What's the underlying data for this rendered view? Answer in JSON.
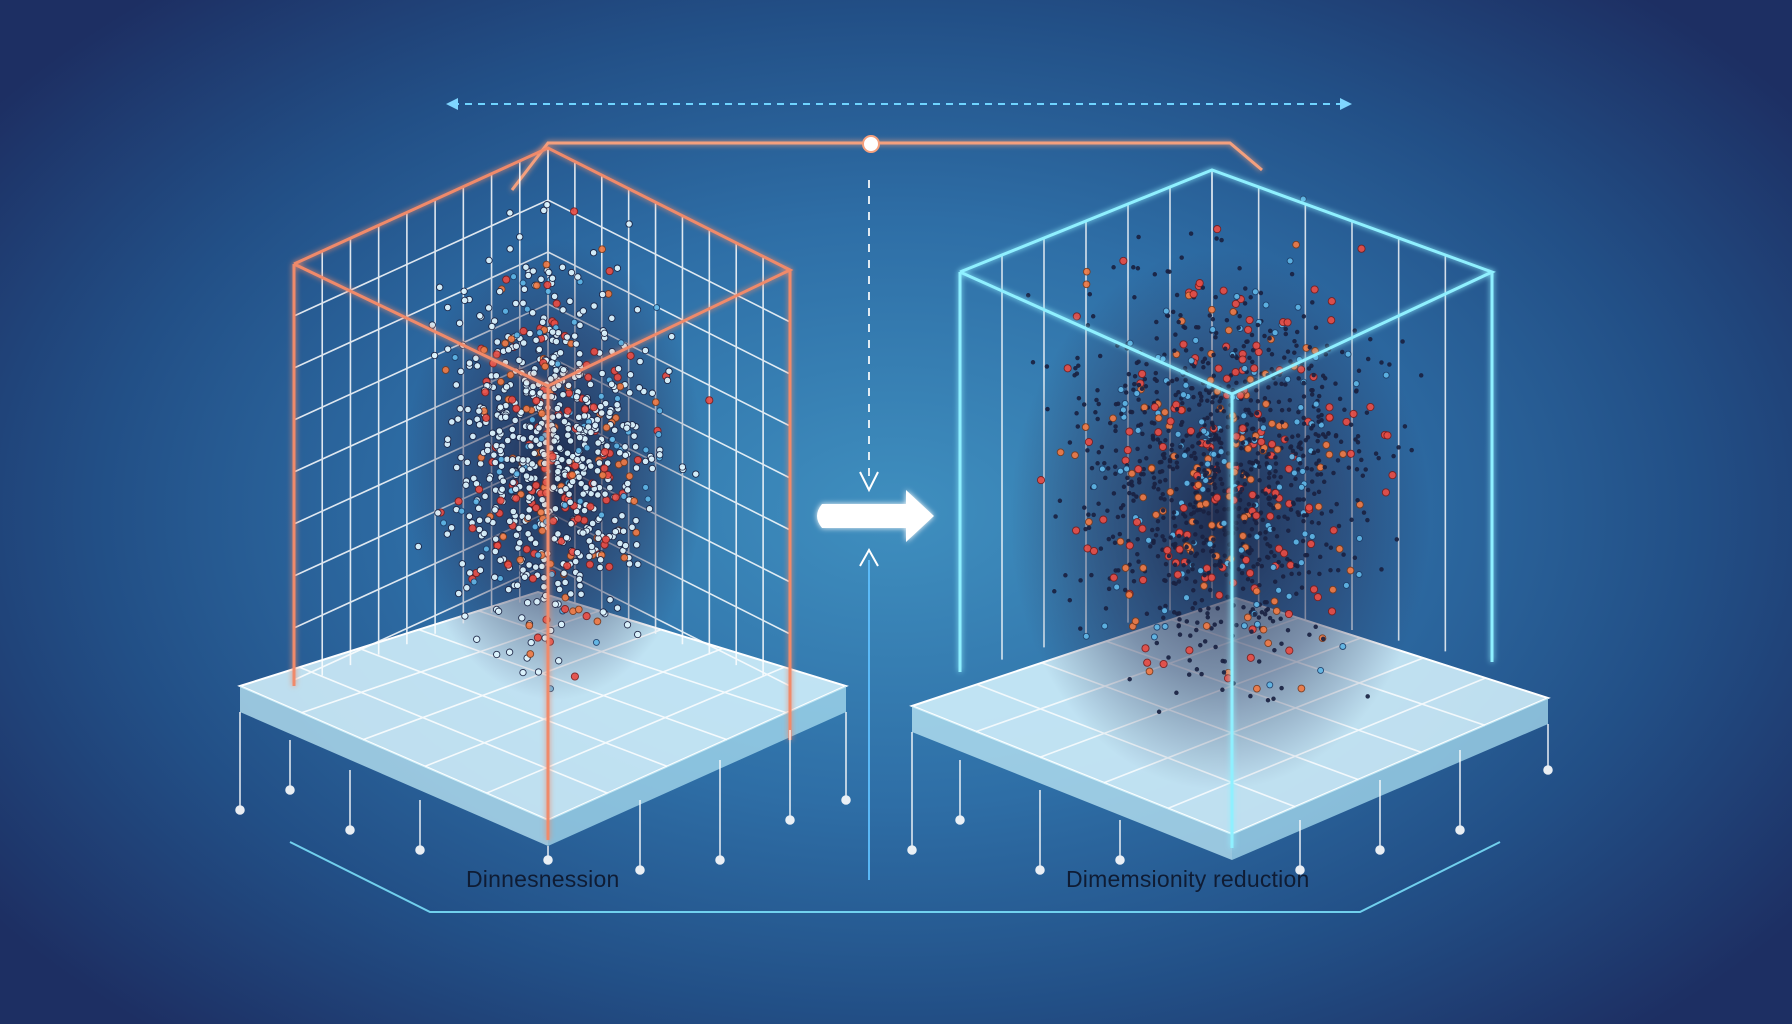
{
  "diagram": {
    "left_panel": {
      "label": "Dinnesnession"
    },
    "right_panel": {
      "label": "Dimemsionity reduction"
    },
    "colors": {
      "background_center": "#3f8fbf",
      "background_edge": "#1d2f63",
      "grid_line": "#ffffff",
      "frame_orange": "#f08a6a",
      "frame_cyan": "#7fe6ff",
      "point_red": "#e84d45",
      "point_orange": "#f07a45",
      "point_blue": "#5fb6e6",
      "point_dark": "#1a2242",
      "arrow": "#ffffff"
    },
    "icons": [
      "right-arrow-icon",
      "dashed-arrow-icon",
      "connector-node-icon"
    ]
  }
}
